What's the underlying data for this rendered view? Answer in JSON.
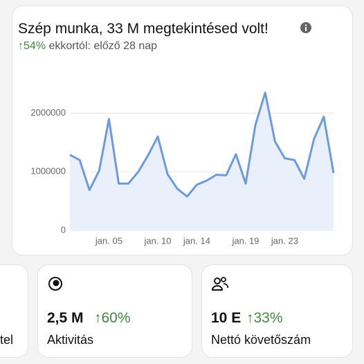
{
  "chart_data": {
    "type": "line",
    "title": "Szép munka, 33 M megtekintésed volt!",
    "subtitle_change": "54%",
    "subtitle": "ekkortól: előző 28 nap",
    "categories": [
      null,
      null,
      null,
      null,
      "jan. 05",
      null,
      null,
      null,
      null,
      "jan. 10",
      null,
      null,
      null,
      "jan. 14",
      null,
      null,
      null,
      null,
      "jan. 19",
      null,
      null,
      null,
      "jan. 23",
      null,
      null,
      null,
      null,
      null
    ],
    "values": [
      1290000,
      1200000,
      690000,
      1020000,
      1900000,
      800000,
      800000,
      1000000,
      1280000,
      1600000,
      960000,
      710000,
      580000,
      780000,
      850000,
      950000,
      940000,
      1300000,
      800000,
      1800000,
      2350000,
      1520000,
      1230000,
      1200000,
      880000,
      1560000,
      1940000,
      980000
    ],
    "color": "#6a9be0",
    "ylim": [
      0,
      2750000
    ],
    "yticks": [
      0,
      1000000,
      2000000
    ],
    "grid": true
  },
  "cards": [
    {
      "label": "tel"
    },
    {
      "value": "2,5 M",
      "change": "60%",
      "label": "Aktivitás"
    },
    {
      "value": "10 E",
      "change": "33%",
      "label": "Nettó követőszám"
    }
  ]
}
